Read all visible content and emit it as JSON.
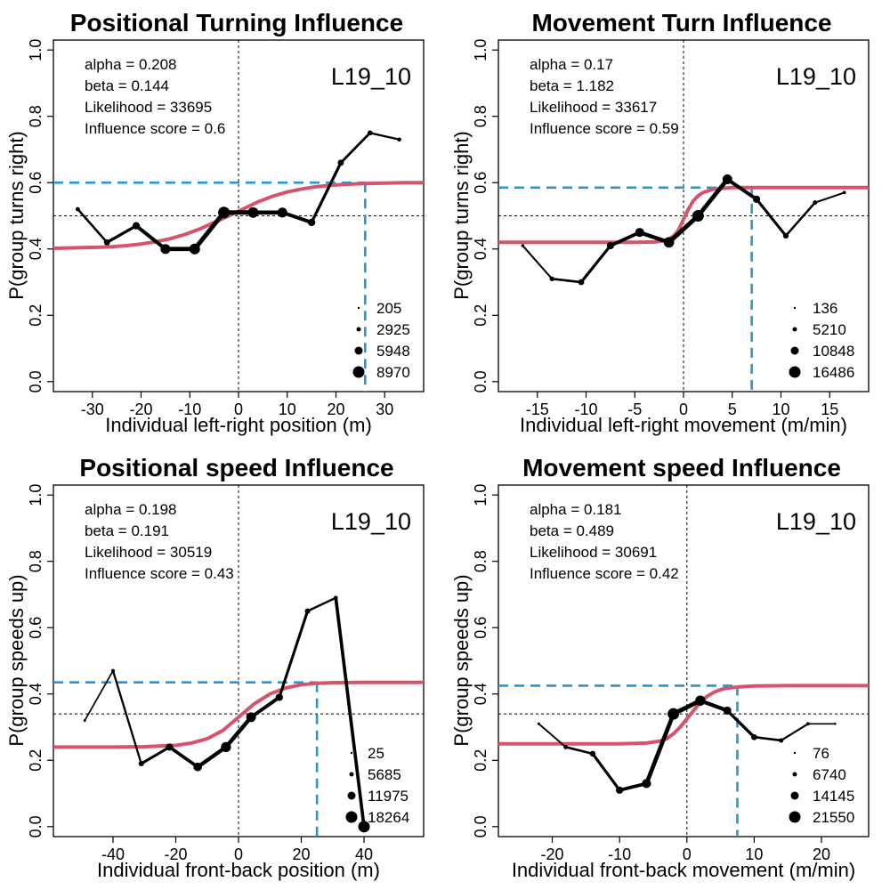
{
  "chart_data": [
    {
      "type": "line",
      "title": "Positional Turning Influence",
      "xlabel": "Individual left-right position (m)",
      "ylabel": "P(group turns right)",
      "xlim": [
        -38,
        38
      ],
      "ylim": [
        -0.03,
        1.03
      ],
      "xticks": [
        -30,
        -20,
        -10,
        0,
        10,
        20,
        30
      ],
      "yticks": [
        0.0,
        0.2,
        0.4,
        0.6,
        0.8,
        1.0
      ],
      "ytick_labels": [
        "0.0",
        "0.2",
        "0.4",
        "0.6",
        "0.8",
        "1.0"
      ],
      "id_label": "L19_10",
      "stats": [
        "alpha = 0.208",
        "beta = 0.144",
        "Likelihood = 33695",
        "Influence score =  0.6"
      ],
      "baseline": 0.5,
      "influence_x": 26,
      "influence_y": 0.6,
      "legend": [
        "205",
        "2925",
        "5948",
        "8970"
      ],
      "series": [
        {
          "name": "observed",
          "x": [
            -33,
            -27,
            -21,
            -15,
            -9,
            -3,
            3,
            9,
            15,
            21,
            27,
            33
          ],
          "y": [
            0.52,
            0.42,
            0.47,
            0.4,
            0.4,
            0.51,
            0.51,
            0.51,
            0.48,
            0.66,
            0.75,
            0.73
          ],
          "n": [
            600,
            1800,
            3000,
            6200,
            7400,
            8970,
            7300,
            6100,
            3000,
            1800,
            1000,
            500
          ]
        },
        {
          "name": "fitted",
          "x": [
            -38,
            -35,
            -32,
            -29,
            -26,
            -23,
            -20,
            -17,
            -14,
            -11,
            -8,
            -5,
            -2,
            1,
            4,
            7,
            10,
            13,
            16,
            19,
            22,
            25,
            28,
            31,
            34,
            38
          ],
          "y": [
            0.402,
            0.403,
            0.404,
            0.405,
            0.407,
            0.41,
            0.415,
            0.422,
            0.431,
            0.444,
            0.46,
            0.48,
            0.5,
            0.521,
            0.542,
            0.559,
            0.572,
            0.581,
            0.588,
            0.592,
            0.595,
            0.597,
            0.598,
            0.599,
            0.6,
            0.6
          ]
        }
      ]
    },
    {
      "type": "line",
      "title": "Movement Turn Influence",
      "xlabel": "Individual left-right movement (m/min)",
      "ylabel": "P(group turns right)",
      "xlim": [
        -19,
        19
      ],
      "ylim": [
        -0.03,
        1.03
      ],
      "xticks": [
        -15,
        -10,
        -5,
        0,
        5,
        10,
        15
      ],
      "yticks": [
        0.0,
        0.2,
        0.4,
        0.6,
        0.8,
        1.0
      ],
      "ytick_labels": [
        "0.0",
        "0.2",
        "0.4",
        "0.6",
        "0.8",
        "1.0"
      ],
      "id_label": "L19_10",
      "stats": [
        "alpha = 0.17",
        "beta = 1.182",
        "Likelihood = 33617",
        "Influence score =  0.59"
      ],
      "baseline": 0.5,
      "influence_x": 7,
      "influence_y": 0.585,
      "legend": [
        "136",
        "5210",
        "10848",
        "16486"
      ],
      "series": [
        {
          "name": "observed",
          "x": [
            -16.5,
            -13.5,
            -10.5,
            -7.5,
            -4.5,
            -1.5,
            1.5,
            4.5,
            7.5,
            10.5,
            13.5,
            16.5
          ],
          "y": [
            0.41,
            0.31,
            0.3,
            0.41,
            0.45,
            0.42,
            0.5,
            0.61,
            0.55,
            0.44,
            0.54,
            0.57
          ],
          "n": [
            300,
            1500,
            3000,
            5210,
            9000,
            13000,
            16486,
            11000,
            5210,
            2500,
            1200,
            400
          ]
        },
        {
          "name": "fitted",
          "x": [
            -19,
            -15,
            -10,
            -5,
            -3,
            -2,
            -1.5,
            -1,
            -0.5,
            0,
            0.5,
            1,
            1.5,
            2,
            3,
            4,
            5,
            7,
            10,
            15,
            19
          ],
          "y": [
            0.42,
            0.42,
            0.42,
            0.42,
            0.421,
            0.425,
            0.43,
            0.44,
            0.457,
            0.49,
            0.52,
            0.545,
            0.56,
            0.57,
            0.58,
            0.583,
            0.585,
            0.585,
            0.585,
            0.585,
            0.585
          ]
        }
      ]
    },
    {
      "type": "line",
      "title": "Positional speed Influence",
      "xlabel": "Individual front-back position (m)",
      "ylabel": "P(group speeds up)",
      "xlim": [
        -59,
        59
      ],
      "ylim": [
        -0.03,
        1.03
      ],
      "xticks": [
        -40,
        -20,
        0,
        20,
        40
      ],
      "yticks": [
        0.0,
        0.2,
        0.4,
        0.6,
        0.8,
        1.0
      ],
      "ytick_labels": [
        "0.0",
        "0.2",
        "0.4",
        "0.6",
        "0.8",
        "1.0"
      ],
      "id_label": "L19_10",
      "stats": [
        "alpha = 0.198",
        "beta = 0.191",
        "Likelihood = 30519",
        "Influence score =  0.43"
      ],
      "baseline": 0.34,
      "influence_x": 25,
      "influence_y": 0.435,
      "legend": [
        "25",
        "5685",
        "11975",
        "18264"
      ],
      "series": [
        {
          "name": "observed",
          "x": [
            -49,
            -40,
            -31,
            -22,
            -13,
            -4,
            4,
            13,
            22,
            31,
            40
          ],
          "y": [
            0.32,
            0.47,
            0.19,
            0.24,
            0.18,
            0.24,
            0.33,
            0.39,
            0.65,
            0.69,
            0.0
          ],
          "n": [
            100,
            600,
            2500,
            5685,
            9000,
            13000,
            11975,
            6000,
            2500,
            1000,
            18264
          ]
        },
        {
          "name": "fitted",
          "x": [
            -59,
            -50,
            -40,
            -30,
            -20,
            -15,
            -10,
            -5,
            0,
            5,
            10,
            15,
            20,
            25,
            30,
            40,
            50,
            59
          ],
          "y": [
            0.24,
            0.24,
            0.24,
            0.241,
            0.245,
            0.252,
            0.265,
            0.29,
            0.33,
            0.37,
            0.4,
            0.418,
            0.428,
            0.432,
            0.434,
            0.435,
            0.435,
            0.435
          ]
        }
      ]
    },
    {
      "type": "line",
      "title": "Movement speed Influence",
      "xlabel": "Individual front-back movement (m/min)",
      "ylabel": "P(group speeds up)",
      "xlim": [
        -28,
        27
      ],
      "ylim": [
        -0.03,
        1.03
      ],
      "xticks": [
        -20,
        -10,
        0,
        10,
        20
      ],
      "yticks": [
        0.0,
        0.2,
        0.4,
        0.6,
        0.8,
        1.0
      ],
      "ytick_labels": [
        "0.0",
        "0.2",
        "0.4",
        "0.6",
        "0.8",
        "1.0"
      ],
      "id_label": "L19_10",
      "stats": [
        "alpha = 0.181",
        "beta = 0.489",
        "Likelihood = 30691",
        "Influence score =  0.42"
      ],
      "baseline": 0.34,
      "influence_x": 7.5,
      "influence_y": 0.425,
      "legend": [
        "76",
        "6740",
        "14145",
        "21550"
      ],
      "series": [
        {
          "name": "observed",
          "x": [
            -22,
            -18,
            -14,
            -10,
            -6,
            -2,
            2,
            6,
            10,
            14,
            18,
            22
          ],
          "y": [
            0.31,
            0.24,
            0.22,
            0.11,
            0.13,
            0.34,
            0.38,
            0.35,
            0.27,
            0.26,
            0.31,
            0.31
          ],
          "n": [
            200,
            1500,
            3500,
            6740,
            12000,
            21550,
            16000,
            9000,
            4000,
            1800,
            600,
            100
          ]
        },
        {
          "name": "fitted",
          "x": [
            -28,
            -20,
            -10,
            -6,
            -4,
            -3,
            -2,
            -1,
            0,
            1,
            2,
            3,
            4,
            5,
            6,
            8,
            10,
            15,
            20,
            27
          ],
          "y": [
            0.25,
            0.25,
            0.25,
            0.252,
            0.258,
            0.265,
            0.28,
            0.3,
            0.325,
            0.35,
            0.375,
            0.393,
            0.405,
            0.413,
            0.418,
            0.422,
            0.424,
            0.425,
            0.425,
            0.425
          ]
        }
      ]
    }
  ],
  "colors": {
    "fit": "#d6546a",
    "influence": "#2596d9",
    "observed": "#000000",
    "baseline": "#000000"
  }
}
